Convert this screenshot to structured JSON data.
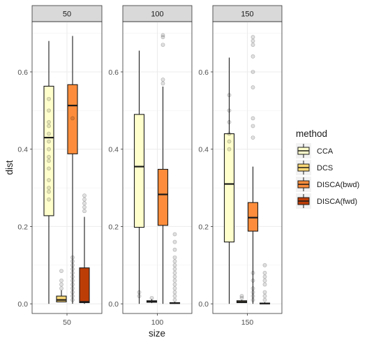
{
  "chart_data": {
    "type": "boxplot",
    "xlabel": "size",
    "ylabel": "dist",
    "ylim": [
      -0.025,
      0.73
    ],
    "y_ticks": [
      0.0,
      0.2,
      0.4,
      0.6
    ],
    "y_tick_labels": [
      "0.0",
      "0.2",
      "0.4",
      "0.6"
    ],
    "legend": {
      "title": "method",
      "position": "right",
      "entries": [
        "CCA",
        "DCS",
        "DISCA(bwd)",
        "DISCA(fwd)"
      ]
    },
    "colors": {
      "CCA": "#ffffcc",
      "DCS": "#fed976",
      "DISCA(bwd)": "#fd8d3c",
      "DISCA(fwd)": "#bd3d07",
      "panel_strip": "#d9d9d9",
      "grid": "#ebebeb"
    },
    "panels": [
      {
        "facet_label": "50",
        "x_label": "50",
        "boxes": [
          {
            "method": "CCA",
            "whisker_low": 0.0,
            "q1": 0.228,
            "median": 0.43,
            "q3": 0.563,
            "whisker_high": 0.68,
            "outliers": [
              0.27,
              0.29,
              0.3,
              0.32,
              0.35,
              0.37,
              0.38,
              0.4,
              0.42,
              0.44,
              0.46,
              0.47,
              0.5,
              0.53
            ]
          },
          {
            "method": "DCS",
            "whisker_low": 0.005,
            "q1": 0.005,
            "median": 0.01,
            "q3": 0.02,
            "whisker_high": 0.035,
            "outliers": [
              0.04,
              0.05,
              0.06,
              0.085
            ]
          },
          {
            "method": "DISCA(bwd)",
            "whisker_low": 0.0,
            "q1": 0.388,
            "median": 0.513,
            "q3": 0.567,
            "whisker_high": 0.693,
            "outliers": [
              0.01,
              0.02,
              0.03,
              0.04,
              0.05,
              0.06,
              0.07,
              0.08,
              0.09,
              0.1,
              0.11,
              0.12,
              0.48
            ]
          },
          {
            "method": "DISCA(fwd)",
            "whisker_low": 0.0,
            "q1": 0.003,
            "median": 0.005,
            "q3": 0.093,
            "whisker_high": 0.225,
            "outliers": [
              0.24,
              0.25,
              0.26,
              0.27,
              0.28
            ]
          }
        ]
      },
      {
        "facet_label": "100",
        "x_label": "100",
        "boxes": [
          {
            "method": "CCA",
            "whisker_low": 0.0,
            "q1": 0.198,
            "median": 0.355,
            "q3": 0.49,
            "whisker_high": 0.655,
            "outliers": [
              0.02,
              0.03
            ]
          },
          {
            "method": "DCS",
            "whisker_low": 0.002,
            "q1": 0.004,
            "median": 0.006,
            "q3": 0.008,
            "whisker_high": 0.012,
            "outliers": [
              0.015
            ]
          },
          {
            "method": "DISCA(bwd)",
            "whisker_low": 0.0,
            "q1": 0.203,
            "median": 0.283,
            "q3": 0.348,
            "whisker_high": 0.562,
            "outliers": [
              0.57,
              0.58,
              0.67,
              0.69,
              0.695
            ]
          },
          {
            "method": "DISCA(fwd)",
            "whisker_low": 0.0,
            "q1": 0.001,
            "median": 0.002,
            "q3": 0.003,
            "whisker_high": 0.005,
            "outliers": [
              0.01,
              0.02,
              0.03,
              0.04,
              0.05,
              0.06,
              0.07,
              0.08,
              0.09,
              0.1,
              0.11,
              0.12,
              0.14,
              0.16,
              0.18
            ]
          }
        ]
      },
      {
        "facet_label": "150",
        "x_label": "150",
        "boxes": [
          {
            "method": "CCA",
            "whisker_low": 0.0,
            "q1": 0.16,
            "median": 0.31,
            "q3": 0.44,
            "whisker_high": 0.637,
            "outliers": [
              0.4,
              0.42,
              0.44,
              0.47,
              0.5,
              0.54
            ]
          },
          {
            "method": "DCS",
            "whisker_low": 0.002,
            "q1": 0.003,
            "median": 0.005,
            "q3": 0.008,
            "whisker_high": 0.01,
            "outliers": [
              0.015,
              0.02
            ]
          },
          {
            "method": "DISCA(bwd)",
            "whisker_low": 0.0,
            "q1": 0.188,
            "median": 0.223,
            "q3": 0.262,
            "whisker_high": 0.355,
            "outliers": [
              0.01,
              0.02,
              0.03,
              0.04,
              0.06,
              0.08,
              0.43,
              0.46,
              0.48,
              0.56,
              0.6,
              0.64,
              0.67,
              0.68,
              0.69
            ]
          },
          {
            "method": "DISCA(fwd)",
            "whisker_low": 0.0,
            "q1": 0.0,
            "median": 0.001,
            "q3": 0.002,
            "whisker_high": 0.004,
            "outliers": [
              0.01,
              0.02,
              0.03,
              0.05,
              0.06,
              0.07,
              0.08,
              0.1
            ]
          }
        ]
      }
    ]
  }
}
